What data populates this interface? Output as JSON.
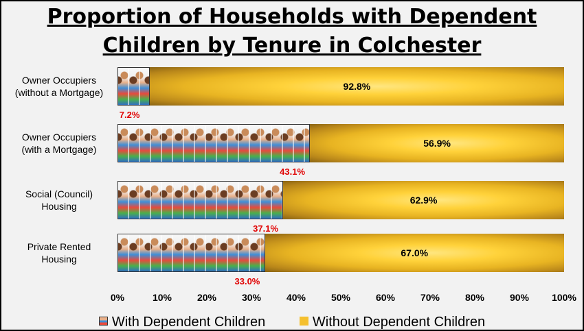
{
  "chart_data": {
    "type": "bar",
    "orientation": "horizontal",
    "stacked": true,
    "normalized_percent": true,
    "title": "Proportion of Households with Dependent Children by Tenure in Colchester",
    "categories": [
      [
        "Owner Occupiers",
        "(without a Mortgage)"
      ],
      [
        "Owner Occupiers",
        "(with a Mortgage)"
      ],
      [
        "Social (Council)",
        "Housing"
      ],
      [
        "Private Rented",
        "Housing"
      ]
    ],
    "series": [
      {
        "name": "With Dependent Children",
        "values": [
          7.2,
          43.1,
          37.1,
          33.0
        ],
        "labels": [
          "7.2%",
          "43.1%",
          "37.1%",
          "33.0%"
        ],
        "fill": "photo of children"
      },
      {
        "name": "Without Dependent Children",
        "values": [
          92.8,
          56.9,
          62.9,
          67.0
        ],
        "labels": [
          "92.8%",
          "56.9%",
          "62.9%",
          "67.0%"
        ],
        "color": "#f5c02e"
      }
    ],
    "xlim": [
      0,
      100
    ],
    "x_ticks": [
      "0%",
      "10%",
      "20%",
      "30%",
      "40%",
      "50%",
      "60%",
      "70%",
      "80%",
      "90%",
      "100%"
    ],
    "grid": false,
    "legend_position": "bottom",
    "label_colors": {
      "with": "#e00000",
      "without": "#000000"
    }
  }
}
